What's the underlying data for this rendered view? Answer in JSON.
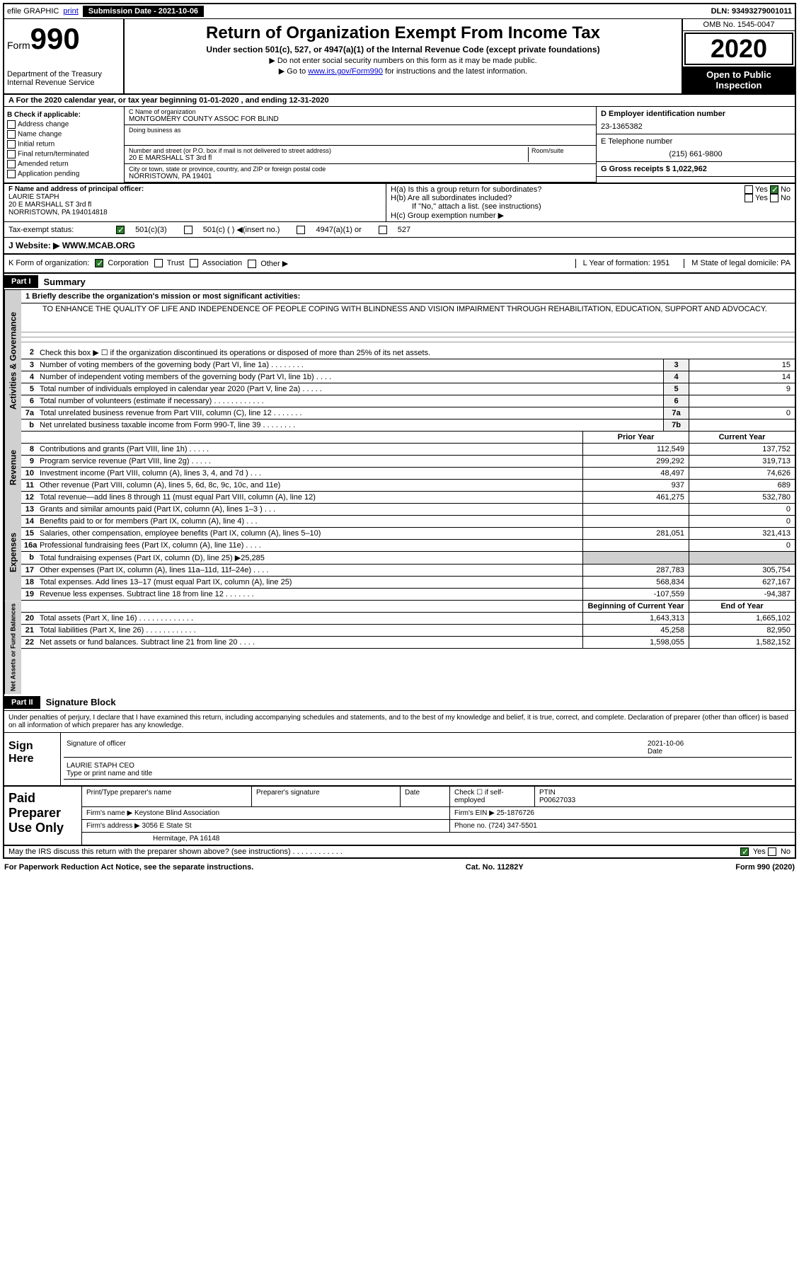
{
  "topbar": {
    "efile": "efile GRAPHIC",
    "print": "print",
    "submission": "Submission Date - 2021-10-06",
    "dln": "DLN: 93493279001011"
  },
  "header": {
    "form_prefix": "Form",
    "form_num": "990",
    "dept": "Department of the Treasury Internal Revenue Service",
    "title": "Return of Organization Exempt From Income Tax",
    "subtitle": "Under section 501(c), 527, or 4947(a)(1) of the Internal Revenue Code (except private foundations)",
    "note1": "▶ Do not enter social security numbers on this form as it may be made public.",
    "note2_pre": "▶ Go to ",
    "note2_link": "www.irs.gov/Form990",
    "note2_post": " for instructions and the latest information.",
    "omb": "OMB No. 1545-0047",
    "year": "2020",
    "open": "Open to Public Inspection"
  },
  "line_a": "A For the 2020 calendar year, or tax year beginning 01-01-2020    , and ending 12-31-2020",
  "col_b": {
    "label": "B Check if applicable:",
    "opts": [
      "Address change",
      "Name change",
      "Initial return",
      "Final return/terminated",
      "Amended return",
      "Application pending"
    ]
  },
  "name_block": {
    "c_label": "C Name of organization",
    "org_name": "MONTGOMERY COUNTY ASSOC FOR BLIND",
    "dba_label": "Doing business as",
    "addr_label": "Number and street (or P.O. box if mail is not delivered to street address)",
    "room_label": "Room/suite",
    "addr": "20 E MARSHALL ST 3rd fl",
    "city_label": "City or town, state or province, country, and ZIP or foreign postal code",
    "city": "NORRISTOWN, PA  19401",
    "d_label": "D Employer identification number",
    "ein": "23-1365382",
    "e_label": "E Telephone number",
    "phone": "(215) 661-9800",
    "g_label": "G Gross receipts $ 1,022,962"
  },
  "principal": {
    "f_label": "F  Name and address of principal officer:",
    "name": "LAURIE STAPH",
    "addr1": "20 E MARSHALL ST 3rd fl",
    "addr2": "NORRISTOWN, PA  194014818",
    "ha": "H(a)  Is this a group return for subordinates?",
    "hb": "H(b)  Are all subordinates included?",
    "hb_note": "If \"No,\" attach a list. (see instructions)",
    "hc": "H(c)  Group exemption number ▶"
  },
  "tax_exempt": {
    "label": "Tax-exempt status:",
    "o1": "501(c)(3)",
    "o2": "501(c) (  ) ◀(insert no.)",
    "o3": "4947(a)(1) or",
    "o4": "527"
  },
  "website": {
    "label": "J   Website: ▶",
    "value": "WWW.MCAB.ORG"
  },
  "kform": {
    "label": "K Form of organization:",
    "opts": [
      "Corporation",
      "Trust",
      "Association",
      "Other ▶"
    ],
    "l": "L Year of formation: 1951",
    "m": "M State of legal domicile: PA"
  },
  "part1": {
    "header": "Part I",
    "title": "Summary",
    "line1": "1   Briefly describe the organization's mission or most significant activities:",
    "mission": "TO ENHANCE THE QUALITY OF LIFE AND INDEPENDENCE OF PEOPLE COPING WITH BLINDNESS AND VISION IMPAIRMENT THROUGH REHABILITATION, EDUCATION, SUPPORT AND ADVOCACY.",
    "line2": "Check this box ▶ ☐  if the organization discontinued its operations or disposed of more than 25% of its net assets."
  },
  "governance_rows": [
    {
      "n": "3",
      "d": "Number of voting members of the governing body (Part VI, line 1a)  .   .   .   .   .   .   .   .",
      "box": "3",
      "v": "15"
    },
    {
      "n": "4",
      "d": "Number of independent voting members of the governing body (Part VI, line 1b)  .   .   .   .",
      "box": "4",
      "v": "14"
    },
    {
      "n": "5",
      "d": "Total number of individuals employed in calendar year 2020 (Part V, line 2a)  .   .   .   .   .",
      "box": "5",
      "v": "9"
    },
    {
      "n": "6",
      "d": "Total number of volunteers (estimate if necessary)   .   .   .   .   .   .   .   .   .   .   .   .",
      "box": "6",
      "v": ""
    },
    {
      "n": "7a",
      "d": "Total unrelated business revenue from Part VIII, column (C), line 12  .   .   .   .   .   .   .",
      "box": "7a",
      "v": "0"
    },
    {
      "n": "b",
      "d": "Net unrelated business taxable income from Form 990-T, line 39  .   .   .   .   .   .   .   .",
      "box": "7b",
      "v": ""
    }
  ],
  "rev_headers": {
    "py": "Prior Year",
    "cy": "Current Year"
  },
  "revenue_rows": [
    {
      "n": "8",
      "d": "Contributions and grants (Part VIII, line 1h)   .   .   .   .   .",
      "py": "112,549",
      "cy": "137,752"
    },
    {
      "n": "9",
      "d": "Program service revenue (Part VIII, line 2g)   .   .   .   .   .",
      "py": "299,292",
      "cy": "319,713"
    },
    {
      "n": "10",
      "d": "Investment income (Part VIII, column (A), lines 3, 4, and 7d )   .   .   .",
      "py": "48,497",
      "cy": "74,626"
    },
    {
      "n": "11",
      "d": "Other revenue (Part VIII, column (A), lines 5, 6d, 8c, 9c, 10c, and 11e)",
      "py": "937",
      "cy": "689"
    },
    {
      "n": "12",
      "d": "Total revenue—add lines 8 through 11 (must equal Part VIII, column (A), line 12)",
      "py": "461,275",
      "cy": "532,780"
    }
  ],
  "expense_rows": [
    {
      "n": "13",
      "d": "Grants and similar amounts paid (Part IX, column (A), lines 1–3 )   .   .   .",
      "py": "",
      "cy": "0"
    },
    {
      "n": "14",
      "d": "Benefits paid to or for members (Part IX, column (A), line 4)   .   .   .",
      "py": "",
      "cy": "0"
    },
    {
      "n": "15",
      "d": "Salaries, other compensation, employee benefits (Part IX, column (A), lines 5–10)",
      "py": "281,051",
      "cy": "321,413"
    },
    {
      "n": "16a",
      "d": "Professional fundraising fees (Part IX, column (A), line 11e)   .   .   .   .",
      "py": "",
      "cy": "0"
    },
    {
      "n": "b",
      "d": "Total fundraising expenses (Part IX, column (D), line 25) ▶25,285",
      "py": "—shaded—",
      "cy": "—shaded—"
    },
    {
      "n": "17",
      "d": "Other expenses (Part IX, column (A), lines 11a–11d, 11f–24e)   .   .   .   .",
      "py": "287,783",
      "cy": "305,754"
    },
    {
      "n": "18",
      "d": "Total expenses. Add lines 13–17 (must equal Part IX, column (A), line 25)",
      "py": "568,834",
      "cy": "627,167"
    },
    {
      "n": "19",
      "d": "Revenue less expenses. Subtract line 18 from line 12 .   .   .   .   .   .   .",
      "py": "-107,559",
      "cy": "-94,387"
    }
  ],
  "net_headers": {
    "bcy": "Beginning of Current Year",
    "eoy": "End of Year"
  },
  "net_rows": [
    {
      "n": "20",
      "d": "Total assets (Part X, line 16)  .   .   .   .   .   .   .   .   .   .   .   .   .",
      "py": "1,643,313",
      "cy": "1,665,102"
    },
    {
      "n": "21",
      "d": "Total liabilities (Part X, line 26)  .   .   .   .   .   .   .   .   .   .   .   .",
      "py": "45,258",
      "cy": "82,950"
    },
    {
      "n": "22",
      "d": "Net assets or fund balances. Subtract line 21 from line 20   .   .   .   .",
      "py": "1,598,055",
      "cy": "1,582,152"
    }
  ],
  "side_labels": {
    "gov": "Activities & Governance",
    "rev": "Revenue",
    "exp": "Expenses",
    "net": "Net Assets or Fund Balances"
  },
  "part2": {
    "header": "Part II",
    "title": "Signature Block"
  },
  "sig": {
    "text": "Under penalties of perjury, I declare that I have examined this return, including accompanying schedules and statements, and to the best of my knowledge and belief, it is true, correct, and complete. Declaration of preparer (other than officer) is based on all information of which preparer has any knowledge.",
    "label": "Sign Here",
    "sig_of": "Signature of officer",
    "date": "2021-10-06",
    "date_lbl": "Date",
    "name": "LAURIE STAPH  CEO",
    "name_lbl": "Type or print name and title"
  },
  "prep": {
    "label": "Paid Preparer Use Only",
    "h1": "Print/Type preparer's name",
    "h2": "Preparer's signature",
    "h3": "Date",
    "h4": "Check ☐ if self-employed",
    "h5": "PTIN",
    "ptin": "P00627033",
    "firm_lbl": "Firm's name    ▶",
    "firm": "Keystone Blind Association",
    "ein_lbl": "Firm's EIN ▶",
    "ein": "25-1876726",
    "addr_lbl": "Firm's address ▶",
    "addr": "3056 E State St",
    "city": "Hermitage, PA  16148",
    "phone_lbl": "Phone no.",
    "phone": "(724) 347-5501"
  },
  "footer": {
    "discuss": "May the IRS discuss this return with the preparer shown above? (see instructions)   .   .   .   .   .   .   .   .   .   .   .   .",
    "yes": "Yes",
    "no": "No",
    "paperwork": "For Paperwork Reduction Act Notice, see the separate instructions.",
    "cat": "Cat. No. 11282Y",
    "form": "Form 990 (2020)"
  }
}
